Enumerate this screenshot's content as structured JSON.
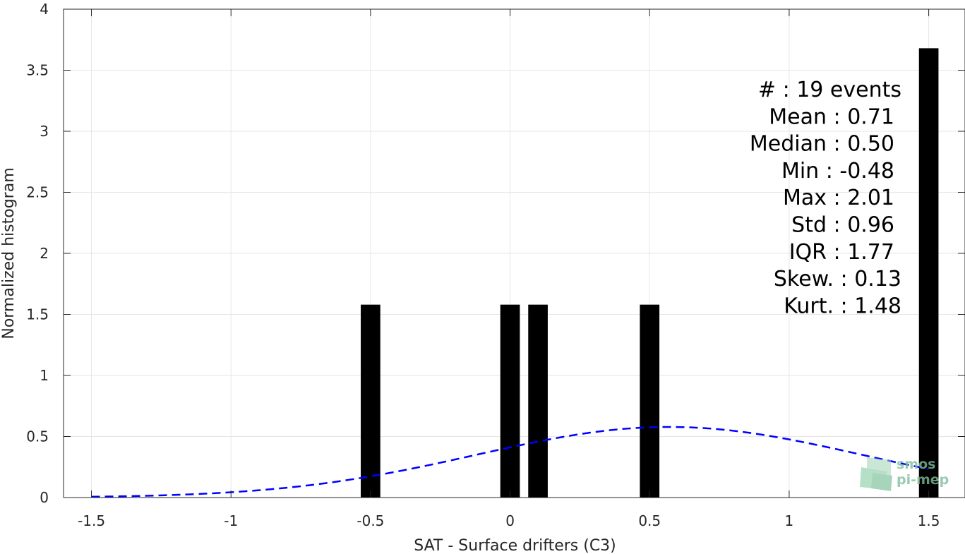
{
  "chart_data": {
    "type": "bar",
    "xlabel": "SAT - Surface drifters (C3)",
    "ylabel": "Normalized histogram",
    "xlim": [
      -1.6,
      1.63
    ],
    "ylim": [
      0,
      4
    ],
    "grid": true,
    "x_ticks": [
      -1.5,
      -1,
      -0.5,
      0,
      0.5,
      1,
      1.5
    ],
    "x_tick_labels": [
      "-1.5",
      "-1",
      "-0.5",
      "0",
      "0.5",
      "1",
      "1.5"
    ],
    "y_ticks": [
      0,
      0.5,
      1,
      1.5,
      2,
      2.5,
      3,
      3.5,
      4
    ],
    "y_tick_labels": [
      "0",
      "0.5",
      "1",
      "1.5",
      "2",
      "2.5",
      "3",
      "3.5",
      "4"
    ],
    "bin_width": 0.07,
    "bars": [
      {
        "x": -0.5,
        "value": 1.58
      },
      {
        "x": 0.0,
        "value": 1.58
      },
      {
        "x": 0.1,
        "value": 1.58
      },
      {
        "x": 0.5,
        "value": 1.58
      },
      {
        "x": 1.5,
        "value": 3.68
      }
    ],
    "fit_curve": {
      "style": "dashed",
      "color": "#0000ff",
      "mean": 0.57,
      "std": 0.69,
      "x_range": [
        -1.5,
        1.5
      ]
    },
    "stats": [
      {
        "label": "#  ",
        "value": ": 19 events"
      },
      {
        "label": "Mean ",
        "value": ": 0.71"
      },
      {
        "label": "Median ",
        "value": ": 0.50"
      },
      {
        "label": "Min ",
        "value": ": -0.48"
      },
      {
        "label": "Max ",
        "value": ": 2.01"
      },
      {
        "label": "Std ",
        "value": ": 0.96"
      },
      {
        "label": "IQR ",
        "value": ": 1.77"
      },
      {
        "label": "Skew. ",
        "value": ": 0.13"
      },
      {
        "label": "Kurt. ",
        "value": ": 1.48"
      }
    ]
  },
  "watermark": {
    "line1": "smos",
    "line2": "pi-mep",
    "color": "#7fbf9a"
  }
}
